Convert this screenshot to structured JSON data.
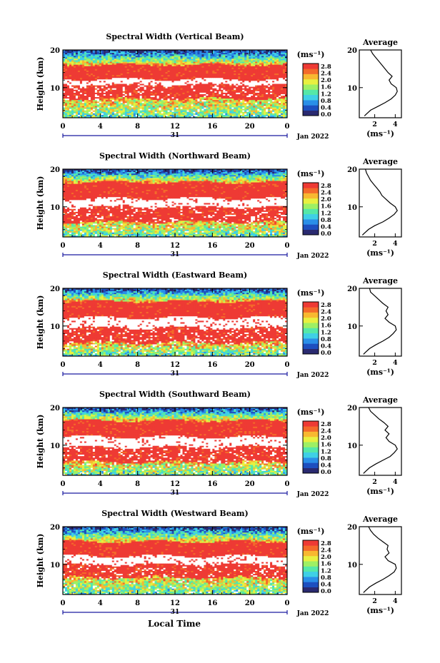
{
  "figure": {
    "xlabel": "Local Time",
    "ylabel": "Height (km)",
    "colorbar_unit": "(ms⁻¹)",
    "colorbar_ticks": [
      "0.0",
      "0.4",
      "0.8",
      "1.2",
      "1.6",
      "2.0",
      "2.4",
      "2.8"
    ],
    "x_ticks": [
      "0",
      "4",
      "8",
      "12",
      "16",
      "20",
      "0"
    ],
    "y_ticks": [
      "10",
      "20"
    ],
    "date_day": "31",
    "date_label": "Jan 2022",
    "avg_title": "Average",
    "avg_xlabel": "(ms⁻¹)",
    "colormap": [
      "#2a2a70",
      "#1d4fbf",
      "#2a8fe8",
      "#3fd0e6",
      "#55e8a8",
      "#9ef064",
      "#e8f040",
      "#f8b830",
      "#f46a2a",
      "#ee3a34"
    ],
    "gap_color": "#ffffff"
  },
  "chart_data": [
    {
      "type": "heatmap",
      "title": "Spectral Width (Vertical Beam)",
      "x_range": [
        0,
        24
      ],
      "y_range": [
        2,
        20
      ],
      "clim": [
        0.0,
        3.0
      ],
      "bands": {
        "strong_low": [
          6,
          9.8
        ],
        "gap": [
          9.8,
          11.2
        ],
        "strong_high": [
          11.2,
          15
        ]
      },
      "missing_time": 16,
      "profile": {
        "title": "Average",
        "x_ticks": [
          "2",
          "4"
        ],
        "x_range": [
          0.5,
          4.6
        ],
        "heights": [
          2.5,
          3,
          4,
          5,
          6,
          7,
          8,
          9,
          10,
          11,
          12,
          13,
          14,
          15,
          16,
          17,
          18,
          19,
          20
        ],
        "values": [
          1.0,
          1.2,
          1.6,
          2.3,
          3.0,
          3.6,
          4.0,
          4.2,
          4.1,
          3.6,
          3.4,
          3.7,
          3.3,
          3.0,
          2.7,
          2.4,
          2.1,
          1.8,
          1.6
        ]
      }
    },
    {
      "type": "heatmap",
      "title": "Spectral Width (Northward Beam)",
      "x_range": [
        0,
        24
      ],
      "y_range": [
        2,
        20
      ],
      "clim": [
        0.0,
        3.0
      ],
      "bands": {
        "strong_low": [
          5.5,
          9.8
        ],
        "gap": [
          9.8,
          12
        ],
        "strong_high": [
          12,
          16
        ]
      },
      "missing_time": 16,
      "profile": {
        "title": "Average",
        "x_ticks": [
          "2",
          "4"
        ],
        "x_range": [
          0.5,
          4.6
        ],
        "heights": [
          2.5,
          3,
          4,
          5,
          6,
          7,
          8,
          9,
          10,
          11,
          12,
          13,
          14,
          15,
          16,
          17,
          18,
          19,
          20
        ],
        "values": [
          0.8,
          1.0,
          1.4,
          2.0,
          2.8,
          3.4,
          3.9,
          4.2,
          4.0,
          3.5,
          3.1,
          2.7,
          2.5,
          2.2,
          1.9,
          1.6,
          1.4,
          1.2,
          1.1
        ]
      }
    },
    {
      "type": "heatmap",
      "title": "Spectral Width (Eastward Beam)",
      "x_range": [
        0,
        24
      ],
      "y_range": [
        2,
        20
      ],
      "clim": [
        0.0,
        3.0
      ],
      "bands": {
        "strong_low": [
          5.5,
          9.8
        ],
        "gap": [
          9.8,
          12.5
        ],
        "strong_high": [
          12.5,
          16.5
        ]
      },
      "missing_time": 16,
      "profile": {
        "title": "Average",
        "x_ticks": [
          "2",
          "4"
        ],
        "x_range": [
          0.5,
          4.6
        ],
        "heights": [
          2.5,
          3,
          4,
          5,
          6,
          7,
          8,
          9,
          10,
          11,
          12,
          13,
          14,
          15,
          16,
          17,
          18,
          19,
          20
        ],
        "values": [
          0.9,
          1.1,
          1.5,
          2.1,
          2.8,
          3.4,
          3.8,
          4.1,
          4.0,
          3.4,
          3.0,
          3.3,
          3.1,
          3.3,
          2.8,
          2.4,
          2.0,
          1.6,
          1.5
        ]
      }
    },
    {
      "type": "heatmap",
      "title": "Spectral Width (Southward Beam)",
      "x_range": [
        0,
        24
      ],
      "y_range": [
        2,
        20
      ],
      "clim": [
        0.0,
        3.0
      ],
      "bands": {
        "strong_low": [
          5.5,
          9.8
        ],
        "gap": [
          9.8,
          12.5
        ],
        "strong_high": [
          12.5,
          16.5
        ]
      },
      "missing_time": 16,
      "profile": {
        "title": "Average",
        "x_ticks": [
          "2",
          "4"
        ],
        "x_range": [
          0.5,
          4.6
        ],
        "heights": [
          2.5,
          3,
          4,
          5,
          6,
          7,
          8,
          9,
          10,
          11,
          12,
          13,
          14,
          15,
          16,
          17,
          18,
          19,
          20
        ],
        "values": [
          0.9,
          1.1,
          1.5,
          2.1,
          2.8,
          3.5,
          3.9,
          4.2,
          4.0,
          3.4,
          3.1,
          3.4,
          3.0,
          3.3,
          2.9,
          2.4,
          2.0,
          1.6,
          1.4
        ]
      }
    },
    {
      "type": "heatmap",
      "title": "Spectral Width (Westward Beam)",
      "x_range": [
        0,
        24
      ],
      "y_range": [
        2,
        20
      ],
      "clim": [
        0.0,
        3.0
      ],
      "bands": {
        "strong_low": [
          6,
          9.8
        ],
        "gap": [
          9.8,
          12
        ],
        "strong_high": [
          12,
          15.5
        ]
      },
      "missing_time": 16,
      "profile": {
        "title": "Average",
        "x_ticks": [
          "2",
          "4"
        ],
        "x_range": [
          0.5,
          4.6
        ],
        "heights": [
          2.5,
          3,
          4,
          5,
          6,
          7,
          8,
          9,
          10,
          11,
          12,
          13,
          14,
          15,
          16,
          17,
          18,
          19,
          20
        ],
        "values": [
          0.9,
          1.1,
          1.5,
          2.1,
          2.8,
          3.4,
          3.9,
          4.1,
          4.0,
          3.3,
          3.0,
          3.4,
          3.2,
          3.3,
          2.8,
          2.3,
          1.9,
          1.6,
          1.4
        ]
      }
    }
  ]
}
